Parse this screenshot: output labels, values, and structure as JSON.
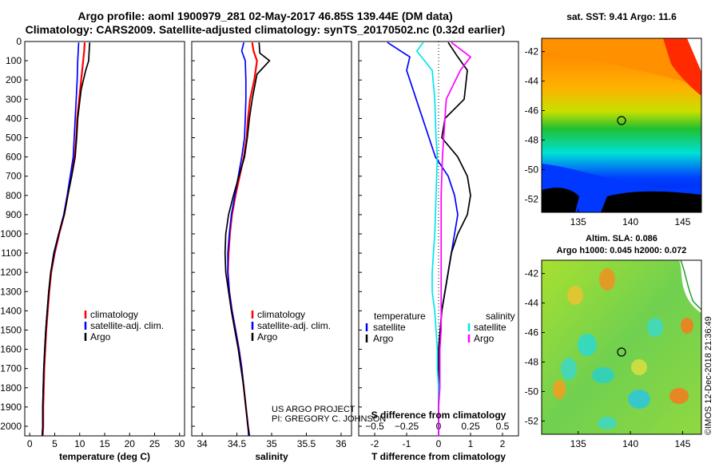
{
  "header": {
    "title_line1": "Argo profile: aoml 1900979_281 02-May-2017 46.85S 139.44E (DM data)",
    "title_line2": "Climatology: CARS2009. Satellite-adjusted climatology: synTS_20170502.nc (0.32d earlier)"
  },
  "credit": {
    "line1": "US ARGO PROJECT",
    "line2": "PI: GREGORY C. JOHNSON"
  },
  "timestamp": "©IMOS 12-Dec-2018 21:36:49",
  "colors": {
    "climatology": "#ff0000",
    "satellite": "#0000ff",
    "argo": "#000000",
    "satellite_salinity": "#00e5ee",
    "climatology_salinity": "#ff00ff"
  },
  "chart_data": [
    {
      "type": "line",
      "xlabel": "temperature (deg C)",
      "ylim": [
        2050,
        0
      ],
      "xlim": [
        -1,
        31
      ],
      "xticks": [
        0,
        5,
        10,
        15,
        20,
        25,
        30
      ],
      "yticks": [
        0,
        100,
        200,
        300,
        400,
        500,
        600,
        700,
        800,
        900,
        1000,
        1100,
        1200,
        1300,
        1400,
        1500,
        1600,
        1700,
        1800,
        1900,
        2000
      ],
      "legend": [
        "climatology",
        "satellite-adj. clim.",
        "Argo"
      ],
      "legend_position": "lower-right",
      "series": [
        {
          "name": "climatology",
          "color": "#ff0000",
          "x": [
            11.0,
            10.9,
            10.7,
            10.3,
            9.9,
            9.5,
            9.3,
            9.0,
            8.3,
            7.6,
            6.9,
            5.9,
            5.0,
            4.3,
            3.9,
            3.6,
            3.3,
            3.1,
            2.9,
            2.8,
            2.7,
            2.7,
            2.6
          ],
          "y": [
            5,
            50,
            100,
            200,
            300,
            400,
            500,
            600,
            700,
            800,
            900,
            1000,
            1100,
            1200,
            1300,
            1400,
            1500,
            1600,
            1700,
            1800,
            1900,
            2000,
            2050
          ]
        },
        {
          "name": "satellite-adj. clim.",
          "color": "#0000ff",
          "x": [
            9.8,
            9.7,
            9.6,
            9.5,
            9.3,
            9.1,
            8.9,
            8.7,
            8.1,
            7.5,
            6.8,
            5.8,
            4.9,
            4.2,
            3.8,
            3.5,
            3.2,
            3.0,
            2.8,
            2.7,
            2.6,
            2.6,
            2.5
          ],
          "y": [
            5,
            50,
            100,
            200,
            300,
            400,
            500,
            600,
            700,
            800,
            900,
            1000,
            1100,
            1200,
            1300,
            1400,
            1500,
            1600,
            1700,
            1800,
            1900,
            2000,
            2050
          ]
        },
        {
          "name": "Argo",
          "color": "#000000",
          "x": [
            12.0,
            11.9,
            11.8,
            11.2,
            10.3,
            9.6,
            9.4,
            9.1,
            8.4,
            7.6,
            6.9,
            5.8,
            4.8,
            4.2,
            3.8,
            3.5,
            3.2,
            3.0,
            2.8,
            2.7,
            2.6,
            2.6,
            2.5
          ],
          "y": [
            5,
            50,
            100,
            150,
            250,
            400,
            500,
            600,
            700,
            800,
            900,
            1000,
            1100,
            1200,
            1300,
            1400,
            1500,
            1600,
            1700,
            1800,
            1900,
            2000,
            2050
          ]
        }
      ]
    },
    {
      "type": "line",
      "xlabel": "salinity",
      "ylim": [
        2050,
        0
      ],
      "xlim": [
        33.85,
        36.15
      ],
      "xticks": [
        34,
        34.5,
        35,
        35.5,
        36
      ],
      "legend": [
        "climatology",
        "satellite-adj. clim.",
        "Argo"
      ],
      "legend_position": "lower-right",
      "series": [
        {
          "name": "climatology",
          "color": "#ff0000",
          "x": [
            34.72,
            34.74,
            34.79,
            34.75,
            34.69,
            34.66,
            34.64,
            34.6,
            34.54,
            34.48,
            34.43,
            34.4,
            34.38,
            34.37,
            34.39,
            34.43,
            34.48,
            34.53,
            34.57,
            34.6,
            34.63,
            34.66,
            34.68
          ],
          "y": [
            5,
            50,
            100,
            200,
            300,
            400,
            500,
            600,
            700,
            800,
            900,
            1000,
            1100,
            1200,
            1300,
            1400,
            1500,
            1600,
            1700,
            1800,
            1900,
            2000,
            2050
          ]
        },
        {
          "name": "satellite-adj. clim.",
          "color": "#0000ff",
          "x": [
            34.6,
            34.57,
            34.62,
            34.63,
            34.63,
            34.62,
            34.61,
            34.57,
            34.52,
            34.47,
            34.42,
            34.39,
            34.37,
            34.37,
            34.39,
            34.43,
            34.48,
            34.53,
            34.57,
            34.6,
            34.63,
            34.66,
            34.68
          ],
          "y": [
            5,
            50,
            100,
            200,
            300,
            400,
            500,
            600,
            700,
            800,
            900,
            1000,
            1100,
            1200,
            1300,
            1400,
            1500,
            1600,
            1700,
            1800,
            1900,
            2000,
            2050
          ]
        },
        {
          "name": "Argo",
          "color": "#000000",
          "x": [
            34.82,
            34.83,
            34.97,
            34.79,
            34.72,
            34.68,
            34.65,
            34.61,
            34.53,
            34.45,
            34.38,
            34.34,
            34.33,
            34.34,
            34.38,
            34.42,
            34.47,
            34.52,
            34.56,
            34.6,
            34.63,
            34.66,
            34.67
          ],
          "y": [
            5,
            60,
            100,
            170,
            300,
            400,
            500,
            600,
            700,
            800,
            900,
            1000,
            1100,
            1200,
            1300,
            1400,
            1500,
            1600,
            1700,
            1800,
            1900,
            2000,
            2050
          ]
        }
      ]
    },
    {
      "type": "line",
      "xlabel": "T difference from climatology",
      "x2label": "S difference from climatology",
      "ylim": [
        2050,
        0
      ],
      "xlim": [
        -2.5,
        2.5
      ],
      "xticks": [
        -2,
        -1,
        0,
        1,
        2
      ],
      "x2lim": [
        -0.625,
        0.625
      ],
      "x2ticks": [
        -0.5,
        -0.25,
        0,
        0.25,
        0.5
      ],
      "legend_left_title": "temperature",
      "legend_left": [
        "satellite",
        "Argo"
      ],
      "legend_right_title": "salinity",
      "legend_right": [
        "satellite",
        "Argo"
      ],
      "series": [
        {
          "name": "satellite",
          "quantity": "temperature",
          "color": "#0000ff",
          "x": [
            -1.6,
            -0.9,
            -1.0,
            -0.7,
            -0.5,
            -0.3,
            -0.1,
            0.3,
            0.5,
            0.6,
            0.5,
            0.4,
            0.3,
            0.2,
            0.1,
            0.05,
            0.0,
            0.0,
            0.0,
            0.0,
            0.0,
            0.0
          ],
          "y": [
            5,
            80,
            150,
            300,
            400,
            500,
            600,
            700,
            800,
            900,
            1000,
            1100,
            1200,
            1300,
            1400,
            1500,
            1600,
            1700,
            1800,
            1900,
            2000,
            2050
          ]
        },
        {
          "name": "Argo",
          "quantity": "temperature",
          "color": "#000000",
          "x": [
            0.3,
            0.6,
            0.9,
            0.8,
            0.2,
            0.1,
            0.6,
            0.9,
            1.0,
            0.9,
            0.6,
            0.4,
            0.3,
            0.2,
            0.1,
            0.05,
            0.0,
            0.0,
            0.0,
            0.0,
            0.0,
            0.0
          ],
          "y": [
            5,
            80,
            150,
            300,
            400,
            500,
            600,
            700,
            800,
            900,
            1000,
            1100,
            1200,
            1300,
            1400,
            1500,
            1600,
            1700,
            1800,
            1900,
            2000,
            2050
          ]
        },
        {
          "name": "satellite",
          "quantity": "salinity",
          "color": "#00e5ee",
          "x": [
            -0.12,
            -0.17,
            -0.05,
            -0.03,
            -0.02,
            -0.01,
            -0.02,
            -0.03,
            -0.05,
            -0.05,
            -0.03,
            -0.02,
            -0.01,
            -0.01,
            0.0,
            0.0,
            0.0,
            0.0,
            0.0
          ],
          "y": [
            5,
            50,
            150,
            300,
            500,
            600,
            800,
            1000,
            1200,
            1300,
            1400,
            1500,
            1600,
            1700,
            1800,
            1900,
            1950,
            2000,
            2050
          ]
        },
        {
          "name": "Argo",
          "quantity": "salinity",
          "color": "#ff00ff",
          "x": [
            0.1,
            0.25,
            0.17,
            0.06,
            0.04,
            0.03,
            0.02,
            0.02,
            0.02,
            0.02,
            0.02,
            0.01,
            0.01,
            0.0,
            0.0,
            0.0
          ],
          "y": [
            5,
            80,
            150,
            300,
            500,
            600,
            800,
            1000,
            1200,
            1400,
            1500,
            1600,
            1800,
            1900,
            2000,
            2050
          ]
        }
      ]
    },
    {
      "type": "heatmap",
      "title": "sat. SST: 9.41 Argo: 11.6",
      "xticks": [
        135,
        140,
        145
      ],
      "yticks": [
        -42,
        -44,
        -46,
        -48,
        -50,
        -52
      ],
      "xlim": [
        131.5,
        146.8
      ],
      "ylim": [
        -52.9,
        -41.1
      ],
      "marker": {
        "lon": 139.44,
        "lat": -46.85
      }
    },
    {
      "type": "heatmap",
      "title": "Altim. SLA: 0.086",
      "subtitle": "Argo h1000: 0.045 h2000: 0.072",
      "xticks": [
        135,
        140,
        145
      ],
      "yticks": [
        -42,
        -44,
        -46,
        -48,
        -50,
        -52
      ],
      "xlim": [
        131.5,
        146.8
      ],
      "ylim": [
        -52.9,
        -41.1
      ],
      "marker": {
        "lon": 139.44,
        "lat": -46.85
      }
    }
  ]
}
